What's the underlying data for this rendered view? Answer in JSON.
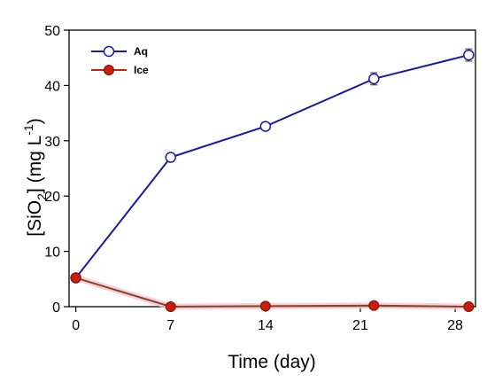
{
  "chart_data": {
    "type": "line",
    "xlabel": "Time (day)",
    "ylabel_parts": [
      "[SiO",
      "2",
      "] (mg L",
      "-1",
      ")"
    ],
    "xlim": [
      -0.5,
      29.5
    ],
    "ylim": [
      0,
      50
    ],
    "x_ticks": [
      0,
      7,
      14,
      21,
      28
    ],
    "y_ticks": [
      0,
      10,
      20,
      30,
      40,
      50
    ],
    "grid": false,
    "legend_position": "top-left",
    "series": [
      {
        "name": "Aq",
        "color": "#1a1aa6",
        "marker": "open-circle",
        "points": [
          {
            "x": 0,
            "y": 5.2,
            "err": 0
          },
          {
            "x": 7,
            "y": 27.0,
            "err": 0.4
          },
          {
            "x": 14,
            "y": 32.6,
            "err": 0.4
          },
          {
            "x": 22,
            "y": 41.2,
            "err": 1.1
          },
          {
            "x": 29,
            "y": 45.5,
            "err": 1.1
          }
        ]
      },
      {
        "name": "Ice",
        "color": "#c81e0a",
        "line_color": "#8b4513",
        "marker": "filled-circle",
        "points": [
          {
            "x": 0,
            "y": 5.2,
            "err": 0.6
          },
          {
            "x": 7,
            "y": 0.0,
            "err": 0.3
          },
          {
            "x": 14,
            "y": 0.1,
            "err": 0.3
          },
          {
            "x": 22,
            "y": 0.2,
            "err": 0.3
          },
          {
            "x": 29,
            "y": 0.0,
            "err": 0.3
          }
        ]
      }
    ]
  }
}
